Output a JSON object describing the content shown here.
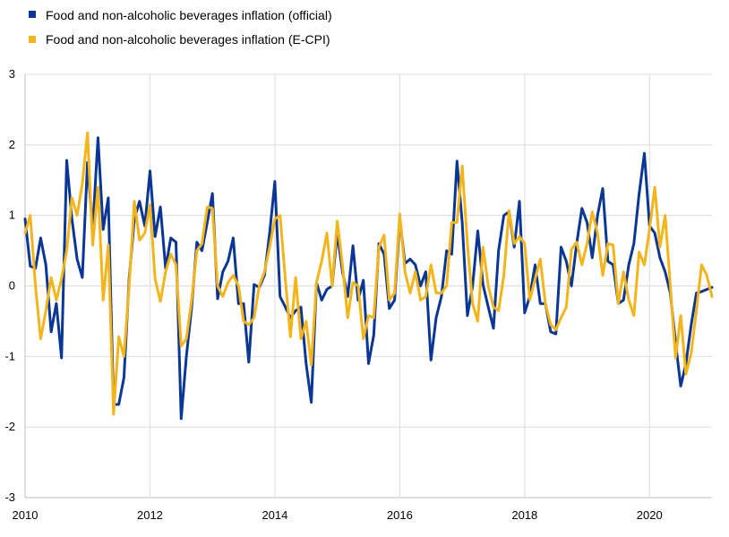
{
  "chart_data": {
    "type": "line",
    "title": "",
    "xlabel": "",
    "ylabel": "",
    "ylim": [
      -3,
      3
    ],
    "xlim": [
      2010,
      2021
    ],
    "x_ticks": [
      "2010",
      "2012",
      "2014",
      "2016",
      "2018",
      "2020"
    ],
    "y_ticks": [
      "-3",
      "-2",
      "-1",
      "0",
      "1",
      "2",
      "3"
    ],
    "grid": true,
    "legend_position": "top-left",
    "series": [
      {
        "name": "Food and non-alcoholic beverages inflation (official)",
        "color": "#0a3795",
        "x": [
          2010.0,
          2010.083,
          2010.167,
          2010.25,
          2010.333,
          2010.417,
          2010.5,
          2010.583,
          2010.667,
          2010.75,
          2010.833,
          2010.917,
          2011.0,
          2011.083,
          2011.167,
          2011.25,
          2011.333,
          2011.417,
          2011.5,
          2011.583,
          2011.667,
          2011.75,
          2011.833,
          2011.917,
          2012.0,
          2012.083,
          2012.167,
          2012.25,
          2012.333,
          2012.417,
          2012.5,
          2012.583,
          2012.667,
          2012.75,
          2012.833,
          2012.917,
          2013.0,
          2013.083,
          2013.167,
          2013.25,
          2013.333,
          2013.417,
          2013.5,
          2013.583,
          2013.667,
          2013.75,
          2013.833,
          2013.917,
          2014.0,
          2014.083,
          2014.167,
          2014.25,
          2014.333,
          2014.417,
          2014.5,
          2014.583,
          2014.667,
          2014.75,
          2014.833,
          2014.917,
          2015.0,
          2015.083,
          2015.167,
          2015.25,
          2015.333,
          2015.417,
          2015.5,
          2015.583,
          2015.667,
          2015.75,
          2015.833,
          2015.917,
          2016.0,
          2016.083,
          2016.167,
          2016.25,
          2016.333,
          2016.417,
          2016.5,
          2016.583,
          2016.667,
          2016.75,
          2016.833,
          2016.917,
          2017.0,
          2017.083,
          2017.167,
          2017.25,
          2017.333,
          2017.417,
          2017.5,
          2017.583,
          2017.667,
          2017.75,
          2017.833,
          2017.917,
          2018.0,
          2018.083,
          2018.167,
          2018.25,
          2018.333,
          2018.417,
          2018.5,
          2018.583,
          2018.667,
          2018.75,
          2018.833,
          2018.917,
          2019.0,
          2019.083,
          2019.167,
          2019.25,
          2019.333,
          2019.417,
          2019.5,
          2019.583,
          2019.667,
          2019.75,
          2019.833,
          2019.917,
          2020.0,
          2020.083,
          2020.167,
          2020.25,
          2020.333,
          2020.417,
          2020.5,
          2020.583,
          2020.667,
          2020.75,
          2020.833,
          2020.917,
          2021.0
        ],
        "values": [
          0.95,
          0.28,
          0.25,
          0.68,
          0.3,
          -0.65,
          -0.25,
          -1.02,
          1.78,
          0.95,
          0.38,
          0.12,
          1.75,
          0.8,
          2.1,
          0.8,
          1.25,
          -1.68,
          -1.68,
          -1.3,
          0.1,
          0.95,
          1.2,
          0.85,
          1.63,
          0.7,
          1.12,
          0.25,
          0.68,
          0.62,
          -1.88,
          -1.0,
          -0.3,
          0.62,
          0.5,
          0.9,
          1.31,
          -0.18,
          0.2,
          0.35,
          0.68,
          -0.25,
          -0.25,
          -1.08,
          0.02,
          -0.02,
          0.15,
          0.75,
          1.48,
          -0.15,
          -0.3,
          -0.45,
          -0.35,
          -0.3,
          -1.1,
          -1.65,
          0.05,
          -0.2,
          -0.05,
          0.0,
          0.75,
          0.2,
          -0.15,
          0.57,
          -0.2,
          0.08,
          -1.1,
          -0.7,
          0.6,
          0.45,
          -0.32,
          -0.2,
          0.95,
          0.32,
          0.38,
          0.3,
          0.0,
          0.2,
          -1.05,
          -0.45,
          -0.15,
          0.5,
          0.45,
          1.77,
          0.9,
          -0.42,
          0.0,
          0.78,
          0.02,
          -0.3,
          -0.6,
          0.5,
          1.0,
          1.05,
          0.55,
          1.2,
          -0.38,
          -0.15,
          0.3,
          -0.25,
          -0.25,
          -0.65,
          -0.68,
          0.55,
          0.35,
          0.0,
          0.6,
          1.1,
          0.9,
          0.4,
          1.0,
          1.38,
          0.35,
          0.3,
          -0.25,
          -0.2,
          0.3,
          0.6,
          1.3,
          1.88,
          0.85,
          0.75,
          0.4,
          0.2,
          -0.1,
          -0.8,
          -1.42,
          -1.1,
          -0.55,
          -0.1,
          -0.08,
          -0.05,
          -0.02
        ]
      },
      {
        "name": "Food and non-alcoholic beverages inflation (E-CPI)",
        "color": "#f4b51a",
        "x": [
          2010.0,
          2010.083,
          2010.167,
          2010.25,
          2010.333,
          2010.417,
          2010.5,
          2010.583,
          2010.667,
          2010.75,
          2010.833,
          2010.917,
          2011.0,
          2011.083,
          2011.167,
          2011.25,
          2011.333,
          2011.417,
          2011.5,
          2011.583,
          2011.667,
          2011.75,
          2011.833,
          2011.917,
          2012.0,
          2012.083,
          2012.167,
          2012.25,
          2012.333,
          2012.417,
          2012.5,
          2012.583,
          2012.667,
          2012.75,
          2012.833,
          2012.917,
          2013.0,
          2013.083,
          2013.167,
          2013.25,
          2013.333,
          2013.417,
          2013.5,
          2013.583,
          2013.667,
          2013.75,
          2013.833,
          2013.917,
          2014.0,
          2014.083,
          2014.167,
          2014.25,
          2014.333,
          2014.417,
          2014.5,
          2014.583,
          2014.667,
          2014.75,
          2014.833,
          2014.917,
          2015.0,
          2015.083,
          2015.167,
          2015.25,
          2015.333,
          2015.417,
          2015.5,
          2015.583,
          2015.667,
          2015.75,
          2015.833,
          2015.917,
          2016.0,
          2016.083,
          2016.167,
          2016.25,
          2016.333,
          2016.417,
          2016.5,
          2016.583,
          2016.667,
          2016.75,
          2016.833,
          2016.917,
          2017.0,
          2017.083,
          2017.167,
          2017.25,
          2017.333,
          2017.417,
          2017.5,
          2017.583,
          2017.667,
          2017.75,
          2017.833,
          2017.917,
          2018.0,
          2018.083,
          2018.167,
          2018.25,
          2018.333,
          2018.417,
          2018.5,
          2018.583,
          2018.667,
          2018.75,
          2018.833,
          2018.917,
          2019.0,
          2019.083,
          2019.167,
          2019.25,
          2019.333,
          2019.417,
          2019.5,
          2019.583,
          2019.667,
          2019.75,
          2019.833,
          2019.917,
          2020.0,
          2020.083,
          2020.167,
          2020.25,
          2020.333,
          2020.417,
          2020.5,
          2020.583,
          2020.667,
          2020.75,
          2020.833,
          2020.917,
          2021.0
        ],
        "values": [
          0.75,
          1.0,
          0.0,
          -0.75,
          -0.35,
          0.12,
          -0.2,
          0.1,
          0.5,
          1.25,
          1.0,
          1.45,
          2.17,
          0.58,
          1.4,
          -0.2,
          0.58,
          -1.82,
          -0.72,
          -1.0,
          0.0,
          1.2,
          0.65,
          0.75,
          1.15,
          0.1,
          -0.22,
          0.2,
          0.45,
          0.3,
          -0.85,
          -0.75,
          -0.2,
          0.5,
          0.6,
          1.12,
          1.1,
          0.0,
          -0.15,
          0.05,
          0.15,
          0.0,
          -0.5,
          -0.55,
          -0.45,
          0.0,
          0.2,
          0.55,
          0.95,
          1.0,
          0.1,
          -0.72,
          0.12,
          -0.75,
          -0.5,
          -1.12,
          0.05,
          0.35,
          0.75,
          0.0,
          0.92,
          0.3,
          -0.45,
          0.05,
          0.0,
          -0.75,
          -0.42,
          -0.45,
          0.55,
          0.72,
          -0.2,
          -0.1,
          1.02,
          0.2,
          -0.1,
          0.2,
          -0.2,
          -0.15,
          0.3,
          -0.1,
          -0.1,
          0.0,
          0.9,
          0.9,
          1.7,
          0.6,
          -0.25,
          -0.5,
          0.55,
          0.0,
          -0.3,
          -0.35,
          0.15,
          1.07,
          0.6,
          0.7,
          0.6,
          -0.2,
          0.1,
          0.38,
          -0.25,
          -0.55,
          -0.62,
          -0.45,
          -0.3,
          0.52,
          0.62,
          0.3,
          0.6,
          1.05,
          0.75,
          0.15,
          0.6,
          0.58,
          -0.25,
          0.2,
          -0.2,
          -0.42,
          0.48,
          0.3,
          0.8,
          1.4,
          0.55,
          1.0,
          0.0,
          -1.02,
          -0.42,
          -1.25,
          -0.95,
          -0.35,
          0.3,
          0.15,
          -0.15
        ]
      }
    ]
  }
}
